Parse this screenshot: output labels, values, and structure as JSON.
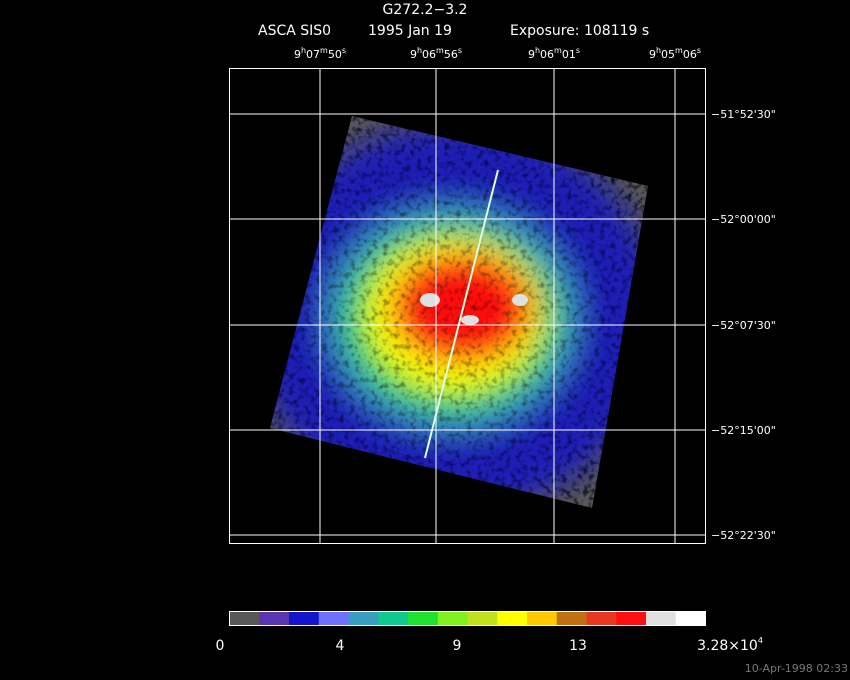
{
  "header": {
    "title": "G272.2−3.2",
    "instrument": "ASCA SIS0",
    "date": "1995 Jan 19",
    "exposure": "Exposure: 108119 s"
  },
  "ra_labels": [
    [
      "9",
      "h",
      "07",
      "m",
      "50",
      "s"
    ],
    [
      "9",
      "h",
      "06",
      "m",
      "56",
      "s"
    ],
    [
      "9",
      "h",
      "06",
      "m",
      "01",
      "s"
    ],
    [
      "9",
      "h",
      "05",
      "m",
      "06",
      "s"
    ]
  ],
  "dec_labels": [
    "−51°52'30\"",
    "−52°00'00\"",
    "−52°07'30\"",
    "−52°15'00\"",
    "−52°22'30\""
  ],
  "colorbar": {
    "colors": [
      "#585858",
      "#5a35b0",
      "#1414cc",
      "#7070ff",
      "#3a9cc0",
      "#10c890",
      "#20e030",
      "#80f020",
      "#c0e020",
      "#ffff00",
      "#ffc800",
      "#c07010",
      "#e83820",
      "#ff1010",
      "#e0e0e0",
      "#ffffff"
    ],
    "labels": [
      "0",
      "4",
      "9",
      "13"
    ],
    "max_label": {
      "mantissa": "3.28×10",
      "exponent": "4"
    }
  },
  "timestamp": "10-Apr-1998 02:33"
}
